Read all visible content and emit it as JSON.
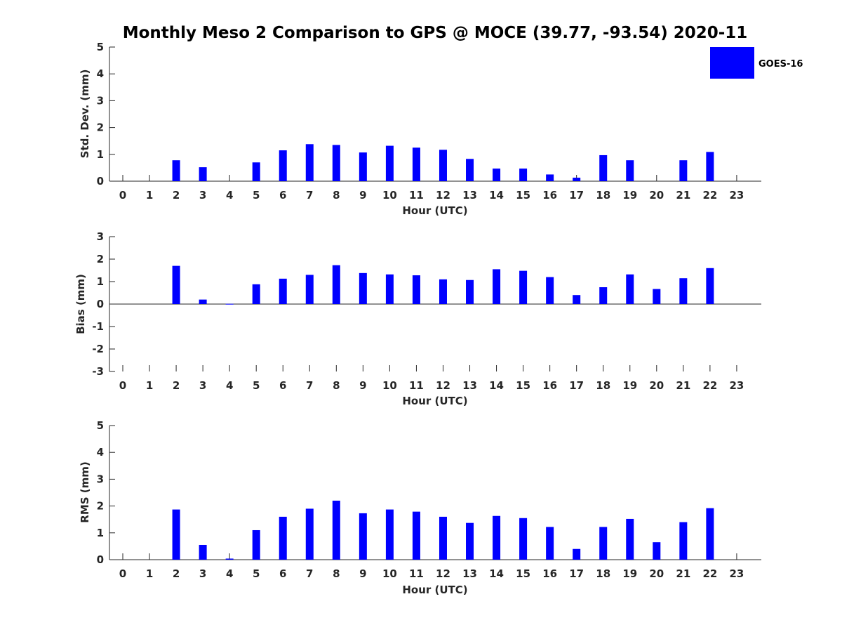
{
  "title": "Monthly Meso 2 Comparison to GPS @ MOCE (39.77, -93.54) 2020-11",
  "legend": {
    "label": "GOES-16",
    "color": "#0000ff"
  },
  "chart_data": [
    {
      "type": "bar",
      "xlabel": "Hour (UTC)",
      "ylabel": "Std. Dev. (mm)",
      "ylim": [
        0,
        5
      ],
      "yticks": [
        0,
        1,
        2,
        3,
        4,
        5
      ],
      "categories": [
        "0",
        "1",
        "2",
        "3",
        "4",
        "5",
        "6",
        "7",
        "8",
        "9",
        "10",
        "11",
        "12",
        "13",
        "14",
        "15",
        "16",
        "17",
        "18",
        "19",
        "20",
        "21",
        "22",
        "23"
      ],
      "series": [
        {
          "name": "GOES-16",
          "values": [
            null,
            null,
            0.78,
            0.52,
            null,
            0.7,
            1.15,
            1.38,
            1.35,
            1.07,
            1.32,
            1.25,
            1.17,
            0.83,
            0.47,
            0.47,
            0.25,
            0.13,
            0.97,
            0.78,
            null,
            0.78,
            1.09,
            null
          ]
        }
      ],
      "legend": "top-right",
      "grid": false
    },
    {
      "type": "bar",
      "xlabel": "Hour (UTC)",
      "ylabel": "Bias (mm)",
      "ylim": [
        -3,
        3
      ],
      "yticks": [
        -3,
        -2,
        -1,
        0,
        1,
        2,
        3
      ],
      "categories": [
        "0",
        "1",
        "2",
        "3",
        "4",
        "5",
        "6",
        "7",
        "8",
        "9",
        "10",
        "11",
        "12",
        "13",
        "14",
        "15",
        "16",
        "17",
        "18",
        "19",
        "20",
        "21",
        "22",
        "23"
      ],
      "series": [
        {
          "name": "GOES-16",
          "values": [
            null,
            null,
            1.7,
            0.2,
            0.01,
            0.88,
            1.13,
            1.3,
            1.73,
            1.38,
            1.32,
            1.28,
            1.1,
            1.07,
            1.55,
            1.48,
            1.2,
            0.4,
            0.75,
            1.32,
            0.67,
            1.15,
            1.6,
            null
          ]
        }
      ],
      "grid": false
    },
    {
      "type": "bar",
      "xlabel": "Hour (UTC)",
      "ylabel": "RMS (mm)",
      "ylim": [
        0,
        5
      ],
      "yticks": [
        0,
        1,
        2,
        3,
        4,
        5
      ],
      "categories": [
        "0",
        "1",
        "2",
        "3",
        "4",
        "5",
        "6",
        "7",
        "8",
        "9",
        "10",
        "11",
        "12",
        "13",
        "14",
        "15",
        "16",
        "17",
        "18",
        "19",
        "20",
        "21",
        "22",
        "23"
      ],
      "series": [
        {
          "name": "GOES-16",
          "values": [
            null,
            null,
            1.87,
            0.55,
            0.04,
            1.1,
            1.6,
            1.9,
            2.2,
            1.73,
            1.87,
            1.79,
            1.6,
            1.37,
            1.63,
            1.55,
            1.22,
            0.4,
            1.22,
            1.52,
            0.65,
            1.4,
            1.92,
            null
          ]
        }
      ],
      "grid": false
    }
  ]
}
